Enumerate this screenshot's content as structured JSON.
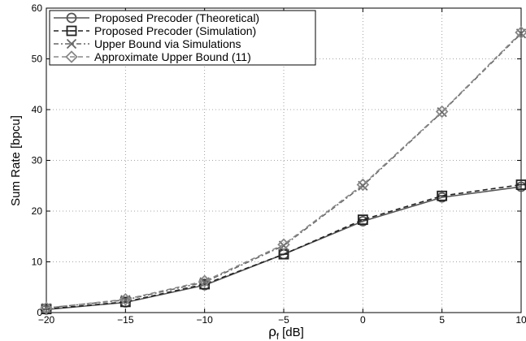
{
  "chart_data": {
    "type": "line",
    "xlabel_main": "ρ",
    "xlabel_sub": "f",
    "xlabel_rest": " [dB]",
    "ylabel": "Sum Rate [bpcu]",
    "x": [
      -20,
      -15,
      -10,
      -5,
      0,
      5,
      10
    ],
    "xlim": [
      -20,
      10
    ],
    "ylim": [
      0,
      60
    ],
    "xticks": [
      -20,
      -15,
      -10,
      -5,
      0,
      5,
      10
    ],
    "yticks": [
      0,
      10,
      20,
      30,
      40,
      50,
      60
    ],
    "grid": true,
    "legend_position": "top-left",
    "series": [
      {
        "name": "Proposed Precoder (Theoretical)",
        "values": [
          0.6,
          2.0,
          5.4,
          11.5,
          18.0,
          22.7,
          24.8
        ],
        "color": "#555555",
        "dash": "solid",
        "marker": "circle"
      },
      {
        "name": "Proposed Precoder (Simulation)",
        "values": [
          0.7,
          2.1,
          5.6,
          11.5,
          18.3,
          23.0,
          25.2
        ],
        "color": "#222222",
        "dash": "dashed",
        "marker": "square"
      },
      {
        "name": "Upper Bound via Simulations",
        "values": [
          0.9,
          2.5,
          6.0,
          13.2,
          25.0,
          39.5,
          55.0
        ],
        "color": "#666666",
        "dash": "dashdot",
        "marker": "x"
      },
      {
        "name": "Approximate Upper Bound (11)",
        "values": [
          0.9,
          2.6,
          6.2,
          13.4,
          25.2,
          39.6,
          55.2
        ],
        "color": "#888888",
        "dash": "dashed",
        "marker": "diamond"
      }
    ]
  }
}
